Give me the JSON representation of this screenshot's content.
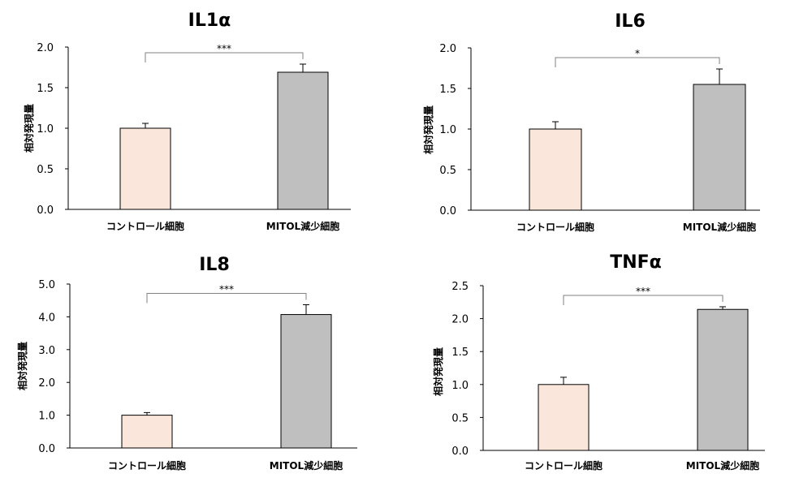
{
  "chart_data": [
    {
      "type": "bar",
      "title": "IL1α",
      "ylabel": "相対発現量",
      "categories": [
        "コントロール細胞",
        "MITOL減少細胞"
      ],
      "values": [
        1.0,
        1.69
      ],
      "errors": [
        0.06,
        0.1
      ],
      "ylim": [
        0,
        2.0
      ],
      "yticks": [
        "0.0",
        "0.5",
        "1.0",
        "1.5",
        "2.0"
      ],
      "significance": "***",
      "colors": [
        "#fae6da",
        "#bfbfbf"
      ]
    },
    {
      "type": "bar",
      "title": "IL6",
      "ylabel": "相対発現量",
      "categories": [
        "コントロール細胞",
        "MITOL減少細胞"
      ],
      "values": [
        1.0,
        1.55
      ],
      "errors": [
        0.09,
        0.19
      ],
      "ylim": [
        0,
        2.0
      ],
      "yticks": [
        "0.0",
        "0.5",
        "1.0",
        "1.5",
        "2.0"
      ],
      "significance": "*",
      "colors": [
        "#fae6da",
        "#bfbfbf"
      ]
    },
    {
      "type": "bar",
      "title": "IL8",
      "ylabel": "相対発現量",
      "categories": [
        "コントロール細胞",
        "MITOL減少細胞"
      ],
      "values": [
        1.0,
        4.07
      ],
      "errors": [
        0.08,
        0.3
      ],
      "ylim": [
        0,
        5.0
      ],
      "yticks": [
        "0.0",
        "1.0",
        "2.0",
        "3.0",
        "4.0",
        "5.0"
      ],
      "significance": "***",
      "colors": [
        "#fae6da",
        "#bfbfbf"
      ]
    },
    {
      "type": "bar",
      "title": "TNFα",
      "ylabel": "相対発現量",
      "categories": [
        "コントロール細胞",
        "MITOL減少細胞"
      ],
      "values": [
        1.0,
        2.14
      ],
      "errors": [
        0.11,
        0.04
      ],
      "ylim": [
        0,
        2.5
      ],
      "yticks": [
        "0.0",
        "0.5",
        "1.0",
        "1.5",
        "2.0",
        "2.5"
      ],
      "significance": "***",
      "colors": [
        "#fae6da",
        "#bfbfbf"
      ]
    }
  ]
}
